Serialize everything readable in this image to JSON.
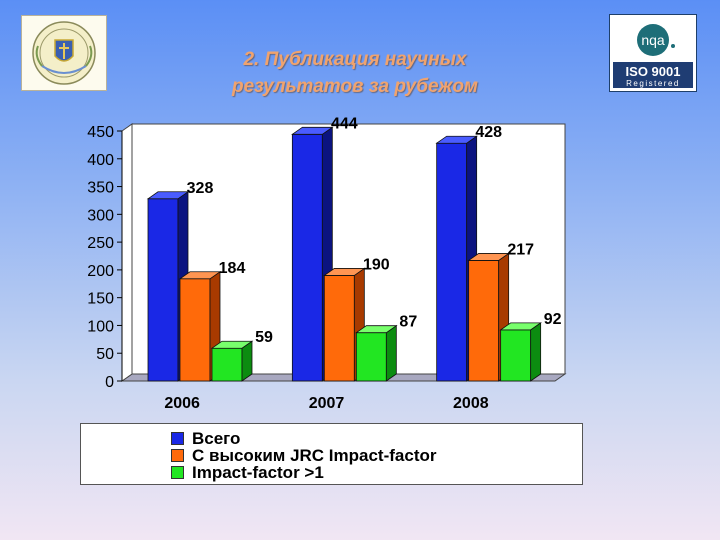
{
  "title_lines": [
    "2. Публикация научных",
    "результатов за рубежом"
  ],
  "logo_right": {
    "brand": "nqa",
    "standard": "ISO 9001",
    "status": "Registered"
  },
  "colors": {
    "series": [
      "#1a28e6",
      "#ff6a0a",
      "#22e622"
    ],
    "series_side": [
      "#0b1380",
      "#a83a00",
      "#0c8c10"
    ],
    "series_top": [
      "#4a5cff",
      "#ff9552",
      "#78ff6c"
    ]
  },
  "chart_data": {
    "type": "bar",
    "categories": [
      "2006",
      "2007",
      "2008"
    ],
    "series": [
      {
        "name": "Всего",
        "values": [
          328,
          444,
          428
        ]
      },
      {
        "name": "С высоким JRC Impact-factor",
        "values": [
          184,
          190,
          217
        ]
      },
      {
        "name": "Impact-factor >1",
        "values": [
          59,
          87,
          92
        ]
      }
    ],
    "ylim": [
      0,
      450
    ],
    "yticks": [
      0,
      50,
      100,
      150,
      200,
      250,
      300,
      350,
      400,
      450
    ],
    "grid": false,
    "legend_position": "bottom"
  }
}
